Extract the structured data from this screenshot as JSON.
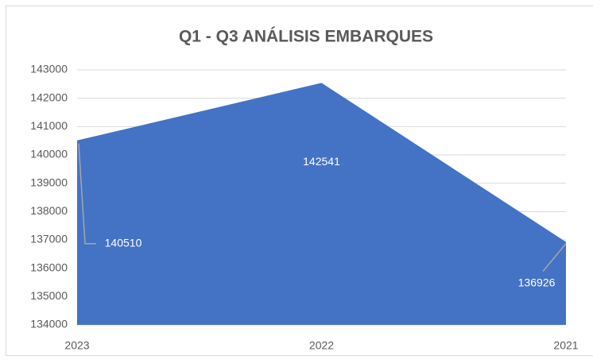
{
  "chart_data": {
    "type": "area",
    "title": "Q1 - Q3 ANÁLISIS EMBARQUES",
    "categories": [
      "2023",
      "2022",
      "2021"
    ],
    "values": [
      140510,
      142541,
      136926
    ],
    "color": "#4472c4",
    "ylim": [
      134000,
      143000
    ],
    "yticks": [
      134000,
      135000,
      136000,
      137000,
      138000,
      139000,
      140000,
      141000,
      142000,
      143000
    ],
    "grid": true
  }
}
